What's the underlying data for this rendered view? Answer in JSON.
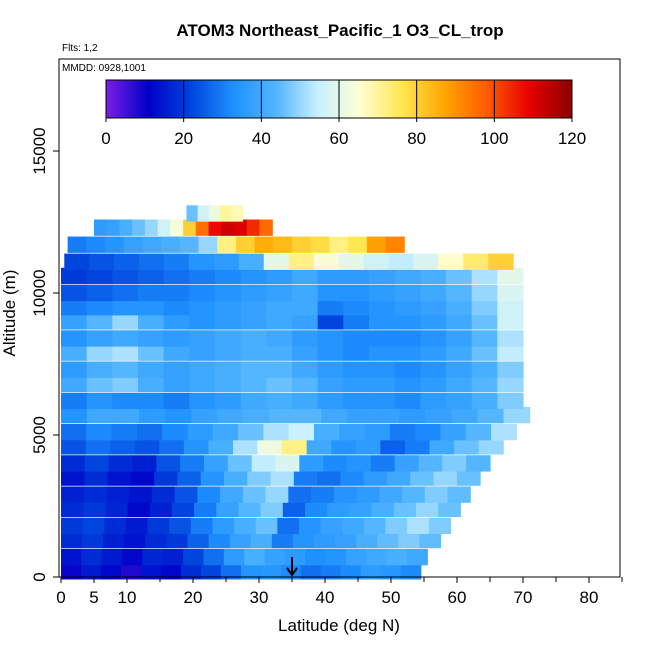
{
  "chart_data": {
    "type": "heatmap",
    "title": "ATOM3 Northeast_Pacific_1 O3_CL_trop",
    "annotations": [
      "Flts: 1,2",
      "MMDD: 0928,1001"
    ],
    "xlabel": "Latitude (deg N)",
    "ylabel": "Altitude (m)",
    "xlim": [
      0,
      85
    ],
    "ylim": [
      0,
      17600
    ],
    "x_ticks": [
      0,
      5,
      10,
      20,
      30,
      40,
      50,
      60,
      70,
      80
    ],
    "y_ticks": [
      0,
      5000,
      10000,
      15000
    ],
    "colorbar": {
      "min": 0,
      "max": 120,
      "ticks": [
        0,
        20,
        40,
        60,
        80,
        100,
        120
      ],
      "colors": [
        "#7a1ee6",
        "#0000c8",
        "#0044dd",
        "#1e90ff",
        "#50b4ff",
        "#c8f0ff",
        "#ffffd2",
        "#ffe650",
        "#ffa500",
        "#ff5a00",
        "#e60000",
        "#8b0000"
      ]
    },
    "marker_latitude": 35,
    "rows": [
      {
        "alt": 200,
        "x0": 0,
        "x1": 54.5,
        "values": [
          10,
          15,
          12,
          8,
          14,
          12,
          18,
          22,
          28,
          34,
          35,
          32,
          28,
          30,
          32,
          36,
          35,
          32
        ]
      },
      {
        "alt": 700,
        "x0": 0,
        "x1": 55.5,
        "values": [
          14,
          18,
          15,
          12,
          17,
          16,
          22,
          28,
          36,
          42,
          38,
          36,
          33,
          34,
          38,
          40,
          42,
          40
        ]
      },
      {
        "alt": 1300,
        "x0": 0,
        "x1": 57.5,
        "values": [
          18,
          20,
          16,
          14,
          18,
          20,
          26,
          32,
          38,
          42,
          30,
          34,
          36,
          38,
          42,
          45,
          48,
          45
        ]
      },
      {
        "alt": 1800,
        "x0": 0,
        "x1": 59.0,
        "values": [
          20,
          22,
          18,
          15,
          20,
          24,
          30,
          36,
          42,
          46,
          28,
          34,
          38,
          40,
          44,
          48,
          52,
          48
        ]
      },
      {
        "alt": 2400,
        "x0": 0,
        "x1": 60.5,
        "values": [
          18,
          20,
          17,
          12,
          16,
          22,
          30,
          38,
          44,
          48,
          26,
          32,
          36,
          38,
          42,
          46,
          50,
          46
        ]
      },
      {
        "alt": 2900,
        "x0": 0,
        "x1": 62.0,
        "values": [
          16,
          18,
          16,
          14,
          18,
          24,
          32,
          40,
          46,
          50,
          28,
          30,
          34,
          36,
          40,
          44,
          48,
          45
        ]
      },
      {
        "alt": 3500,
        "x0": 0,
        "x1": 63.5,
        "values": [
          14,
          18,
          14,
          12,
          20,
          26,
          34,
          42,
          48,
          52,
          30,
          28,
          32,
          36,
          40,
          46,
          50,
          46
        ]
      },
      {
        "alt": 4000,
        "x0": 0,
        "x1": 65.0,
        "values": [
          18,
          22,
          18,
          16,
          24,
          30,
          38,
          46,
          54,
          58,
          36,
          32,
          34,
          30,
          38,
          44,
          48,
          44
        ]
      },
      {
        "alt": 4600,
        "x0": 0,
        "x1": 67.0,
        "values": [
          24,
          28,
          26,
          24,
          28,
          34,
          42,
          52,
          62,
          72,
          40,
          34,
          36,
          26,
          30,
          40,
          46,
          50
        ]
      },
      {
        "alt": 5100,
        "x0": 0,
        "x1": 69.0,
        "values": [
          28,
          32,
          30,
          28,
          32,
          36,
          40,
          46,
          52,
          55,
          42,
          38,
          36,
          30,
          32,
          38,
          44,
          52
        ]
      },
      {
        "alt": 5700,
        "x0": 0,
        "x1": 71.0,
        "values": [
          34,
          40,
          40,
          36,
          34,
          38,
          40,
          42,
          44,
          44,
          40,
          38,
          38,
          36,
          38,
          40,
          44,
          50
        ]
      },
      {
        "alt": 6200,
        "x0": 0,
        "x1": 70.0,
        "values": [
          30,
          34,
          32,
          32,
          30,
          34,
          36,
          40,
          42,
          40,
          36,
          34,
          34,
          32,
          36,
          38,
          42,
          48
        ]
      },
      {
        "alt": 6800,
        "x0": 0,
        "x1": 70.0,
        "values": [
          40,
          46,
          48,
          42,
          38,
          40,
          42,
          44,
          46,
          44,
          38,
          36,
          36,
          34,
          36,
          40,
          44,
          50
        ]
      },
      {
        "alt": 7300,
        "x0": 0,
        "x1": 70.0,
        "values": [
          36,
          42,
          44,
          40,
          38,
          40,
          42,
          44,
          44,
          40,
          36,
          34,
          34,
          32,
          34,
          38,
          42,
          48
        ]
      },
      {
        "alt": 7900,
        "x0": 0,
        "x1": 70.0,
        "values": [
          42,
          50,
          52,
          46,
          40,
          38,
          40,
          42,
          42,
          38,
          34,
          32,
          34,
          34,
          36,
          40,
          46,
          54
        ]
      },
      {
        "alt": 8400,
        "x0": 0,
        "x1": 70.0,
        "values": [
          34,
          38,
          40,
          38,
          36,
          38,
          40,
          42,
          40,
          36,
          34,
          32,
          32,
          32,
          34,
          38,
          44,
          52
        ]
      },
      {
        "alt": 9000,
        "x0": 0,
        "x1": 70.0,
        "values": [
          38,
          44,
          50,
          42,
          36,
          34,
          36,
          38,
          40,
          38,
          22,
          30,
          34,
          34,
          36,
          40,
          46,
          56
        ]
      },
      {
        "alt": 9500,
        "x0": 0,
        "x1": 70.0,
        "values": [
          30,
          32,
          34,
          34,
          32,
          34,
          36,
          38,
          40,
          40,
          30,
          32,
          34,
          36,
          38,
          42,
          48,
          56
        ]
      },
      {
        "alt": 10000,
        "x0": 0,
        "x1": 70.0,
        "values": [
          24,
          26,
          28,
          30,
          30,
          32,
          34,
          36,
          38,
          40,
          34,
          34,
          36,
          38,
          40,
          44,
          50,
          58
        ]
      },
      {
        "alt": 10600,
        "x0": 0,
        "x1": 70.0,
        "values": [
          20,
          22,
          24,
          26,
          28,
          30,
          32,
          34,
          36,
          40,
          36,
          36,
          38,
          40,
          42,
          46,
          52,
          60
        ]
      },
      {
        "alt": 11100,
        "x0": 0.5,
        "x1": 68.5,
        "values": [
          22,
          24,
          26,
          28,
          30,
          34,
          36,
          42,
          60,
          72,
          64,
          60,
          56,
          54,
          58,
          66,
          74,
          80
        ]
      },
      {
        "alt": 11700,
        "x0": 1.0,
        "x1": 52.0,
        "values": [
          30,
          32,
          34,
          38,
          40,
          42,
          44,
          50,
          72,
          80,
          86,
          84,
          80,
          78,
          72,
          76,
          88,
          92
        ]
      },
      {
        "alt": 12300,
        "x0": 5.0,
        "x1": 32.0,
        "values": [
          36,
          38,
          42,
          46,
          50,
          56,
          64,
          80,
          95,
          108,
          112,
          110,
          104,
          96
        ]
      },
      {
        "alt": 12800,
        "x0": 19.0,
        "x1": 27.5,
        "values": [
          46,
          56,
          62,
          70,
          68
        ]
      }
    ]
  }
}
